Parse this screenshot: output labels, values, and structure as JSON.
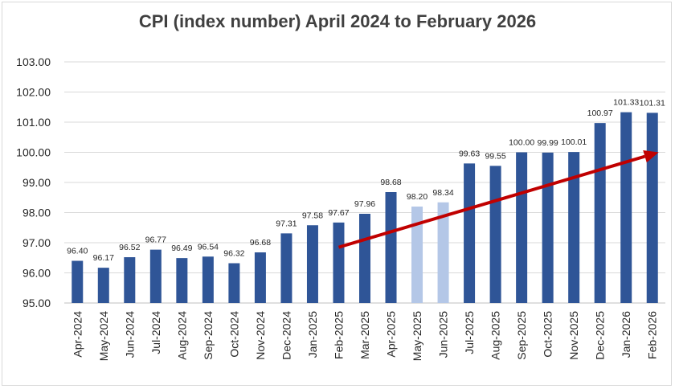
{
  "chart_data": {
    "type": "bar",
    "title": "CPI (index number) April 2024 to February 2026",
    "xlabel": "",
    "ylabel": "",
    "ylim": [
      95,
      103
    ],
    "yticks": [
      "95.00",
      "96.00",
      "97.00",
      "98.00",
      "99.00",
      "100.00",
      "101.00",
      "102.00",
      "103.00"
    ],
    "grid": true,
    "legend": "none",
    "categories": [
      "Apr-2024",
      "May-2024",
      "Jun-2024",
      "Jul-2024",
      "Aug-2024",
      "Sep-2024",
      "Oct-2024",
      "Nov-2024",
      "Dec-2024",
      "Jan-2025",
      "Feb-2025",
      "Mar-2025",
      "Apr-2025",
      "May-2025",
      "Jun-2025",
      "Jul-2025",
      "Aug-2025",
      "Sep-2025",
      "Oct-2025",
      "Nov-2025",
      "Dec-2025",
      "Jan-2026",
      "Feb-2026"
    ],
    "values": [
      96.4,
      96.17,
      96.52,
      96.77,
      96.49,
      96.54,
      96.32,
      96.68,
      97.31,
      97.58,
      97.67,
      97.96,
      98.68,
      98.2,
      98.34,
      99.63,
      99.55,
      100.0,
      99.99,
      100.01,
      100.97,
      101.33,
      101.31
    ],
    "labels": [
      "96.40",
      "96.17",
      "96.52",
      "96.77",
      "96.49",
      "96.54",
      "96.32",
      "96.68",
      "97.31",
      "97.58",
      "97.67",
      "97.96",
      "98.68",
      "98.20",
      "98.34",
      "99.63",
      "99.55",
      "100.00",
      "99.99",
      "100.01",
      "100.97",
      "101.33",
      "101.31"
    ],
    "highlighted_categories": [
      "May-2025",
      "Jun-2025"
    ],
    "trend_arrow": {
      "from": [
        "Feb-2025",
        96.85
      ],
      "to": [
        "Feb-2026",
        100.0
      ]
    },
    "colors": {
      "bar": "#2f5597",
      "highlight": "#b4c7e7",
      "arrow": "#c00000",
      "grid": "#d9d9d9",
      "axis": "#bfbfbf"
    }
  }
}
